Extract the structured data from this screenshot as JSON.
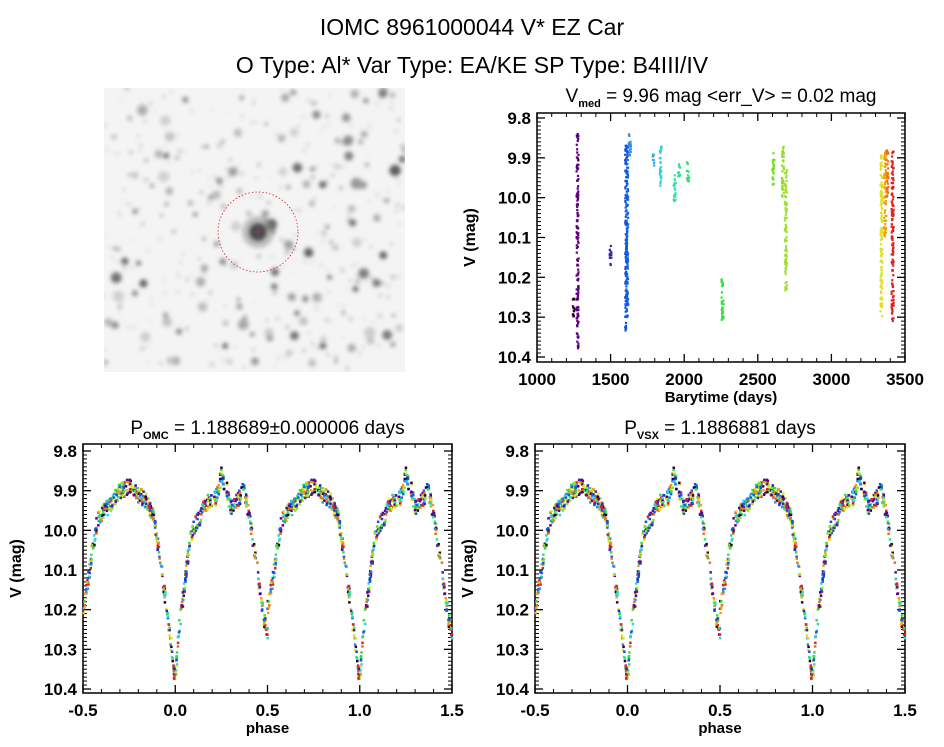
{
  "header": {
    "title": "IOMC 8961000044    V* EZ Car",
    "subtitle": "O Type: Al*  Var Type: EA/KE  SP Type: B4III/IV"
  },
  "sky_image": {
    "marker_color": "#cc2222"
  },
  "chart_data": [
    {
      "type": "scatter",
      "title_main": "V",
      "title_sub": "med",
      "title_rest": " = 9.96 mag <err_V> = 0.02 mag",
      "xlabel": "Barytime (days)",
      "ylabel": "V (mag)",
      "xlim": [
        1000,
        3500
      ],
      "ylim": [
        10.4,
        9.8
      ],
      "y_inverted": true,
      "xticks": [
        "1000",
        "1500",
        "2000",
        "2500",
        "3000",
        "3500"
      ],
      "yticks": [
        "9.8",
        "9.9",
        "10.0",
        "10.1",
        "10.2",
        "10.3",
        "10.4"
      ],
      "grid": false,
      "segments": [
        {
          "t": 1250,
          "v": [
            10.25,
            10.3
          ],
          "color": "#300030"
        },
        {
          "t": 1275,
          "v": [
            9.84,
            10.38
          ],
          "color": "#600080"
        },
        {
          "t": 1500,
          "v": [
            10.12,
            10.17
          ],
          "color": "#4020a0"
        },
        {
          "t": 1605,
          "v": [
            9.86,
            10.34
          ],
          "color": "#1050e0"
        },
        {
          "t": 1612,
          "v": [
            9.87,
            10.3
          ],
          "color": "#1060e8"
        },
        {
          "t": 1630,
          "v": [
            9.84,
            9.91
          ],
          "color": "#3090e0"
        },
        {
          "t": 1790,
          "v": [
            9.89,
            9.93
          ],
          "color": "#30b0e0"
        },
        {
          "t": 1840,
          "v": [
            9.87,
            9.97
          ],
          "color": "#30d0e0"
        },
        {
          "t": 1935,
          "v": [
            9.94,
            10.01
          ],
          "color": "#30e0b0"
        },
        {
          "t": 1965,
          "v": [
            9.91,
            9.95
          ],
          "color": "#30e090"
        },
        {
          "t": 2025,
          "v": [
            9.91,
            9.96
          ],
          "color": "#30e070"
        },
        {
          "t": 2260,
          "v": [
            10.2,
            10.31
          ],
          "color": "#30e040"
        },
        {
          "t": 2605,
          "v": [
            9.88,
            9.97
          ],
          "color": "#70e020"
        },
        {
          "t": 2670,
          "v": [
            9.87,
            10.0
          ],
          "color": "#90e020"
        },
        {
          "t": 2690,
          "v": [
            9.93,
            10.24
          ],
          "color": "#a0e030"
        },
        {
          "t": 3340,
          "v": [
            9.89,
            10.3
          ],
          "color": "#e0e020"
        },
        {
          "t": 3365,
          "v": [
            9.88,
            10.1
          ],
          "color": "#f0a010"
        },
        {
          "t": 3380,
          "v": [
            9.88,
            10.0
          ],
          "color": "#f07010"
        },
        {
          "t": 3415,
          "v": [
            9.88,
            10.31
          ],
          "color": "#e02020"
        }
      ]
    },
    {
      "type": "scatter",
      "title_main": "P",
      "title_sub": "OMC",
      "title_rest": " = 1.188689±0.000006 days",
      "xlabel": "phase",
      "ylabel": "V (mag)",
      "xlim": [
        -0.5,
        1.5
      ],
      "ylim": [
        10.4,
        9.8
      ],
      "y_inverted": true,
      "xticks": [
        "-0.5",
        "0.0",
        "0.5",
        "1.0",
        "1.5"
      ],
      "yticks": [
        "9.8",
        "9.9",
        "10.0",
        "10.1",
        "10.2",
        "10.3",
        "10.4"
      ],
      "grid": false
    },
    {
      "type": "scatter",
      "title_main": "P",
      "title_sub": "VSX",
      "title_rest": " = 1.1886881 days",
      "xlabel": "phase",
      "ylabel": "V (mag)",
      "xlim": [
        -0.5,
        1.5
      ],
      "ylim": [
        10.4,
        9.8
      ],
      "y_inverted": true,
      "xticks": [
        "-0.5",
        "0.0",
        "0.5",
        "1.0",
        "1.5"
      ],
      "yticks": [
        "9.8",
        "9.9",
        "10.0",
        "10.1",
        "10.2",
        "10.3",
        "10.4"
      ],
      "grid": false
    }
  ],
  "light_curve": {
    "phase": [
      -0.5,
      -0.47,
      -0.45,
      -0.42,
      -0.38,
      -0.33,
      -0.3,
      -0.25,
      -0.2,
      -0.15,
      -0.12,
      -0.1,
      -0.08,
      -0.06,
      -0.04,
      -0.02,
      0,
      0.01,
      0.02,
      0.04,
      0.06,
      0.08,
      0.1,
      0.13,
      0.17,
      0.22,
      0.25,
      0.28,
      0.3,
      0.33,
      0.37,
      0.4,
      0.43,
      0.46,
      0.48,
      0.5
    ],
    "V": [
      10.2,
      10.12,
      10.05,
      9.97,
      9.95,
      9.92,
      9.9,
      9.89,
      9.91,
      9.93,
      9.96,
      10.02,
      10.08,
      10.15,
      10.22,
      10.3,
      10.38,
      10.32,
      10.25,
      10.18,
      10.1,
      10.03,
      9.99,
      9.97,
      9.93,
      9.92,
      9.86,
      9.9,
      9.94,
      9.93,
      9.9,
      9.96,
      10.05,
      10.15,
      10.22,
      10.26
    ],
    "colors": [
      "#300030",
      "#600080",
      "#4020a0",
      "#1050e0",
      "#1060e8",
      "#3090e0",
      "#30d0e0",
      "#30e090",
      "#30e040",
      "#90e020",
      "#e0e020",
      "#f0a010",
      "#f07010",
      "#e02020"
    ]
  }
}
